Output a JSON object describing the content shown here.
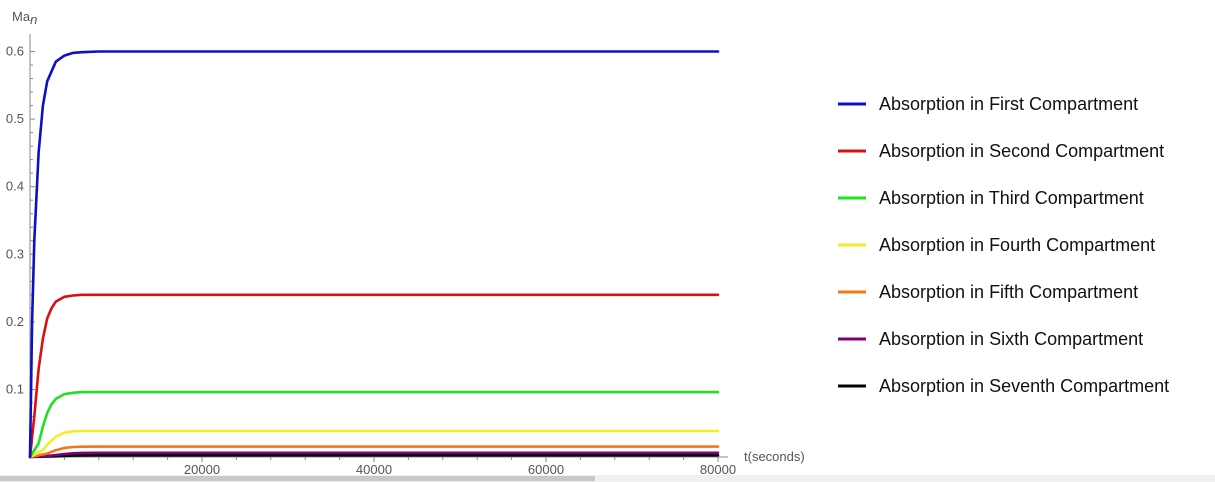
{
  "chart_data": {
    "type": "line",
    "xlabel": "t(seconds)",
    "ylabel": "Ma",
    "ylabel_sub": "n",
    "xlim": [
      0,
      80000
    ],
    "ylim": [
      0,
      0.62
    ],
    "x_ticks": [
      {
        "value": 20000,
        "label": "20000"
      },
      {
        "value": 40000,
        "label": "40000"
      },
      {
        "value": 60000,
        "label": "60000"
      },
      {
        "value": 80000,
        "label": "80000"
      }
    ],
    "y_ticks": [
      {
        "value": 0.1,
        "label": "0.1"
      },
      {
        "value": 0.2,
        "label": "0.2"
      },
      {
        "value": 0.3,
        "label": "0.3"
      },
      {
        "value": 0.4,
        "label": "0.4"
      },
      {
        "value": 0.5,
        "label": "0.5"
      },
      {
        "value": 0.6,
        "label": "0.6"
      }
    ],
    "grid": false,
    "legend": "right",
    "series": [
      {
        "name": "Absorption in First Compartment",
        "color": "#1010c0",
        "x": [
          0,
          250,
          500,
          1000,
          1500,
          2000,
          3000,
          4000,
          5000,
          6000,
          8000,
          20000,
          40000,
          60000,
          80000
        ],
        "values": [
          0,
          0.2,
          0.32,
          0.45,
          0.52,
          0.556,
          0.585,
          0.594,
          0.598,
          0.599,
          0.6,
          0.6,
          0.6,
          0.6,
          0.6
        ]
      },
      {
        "name": "Absorption in Second Compartment",
        "color": "#d81010",
        "x": [
          0,
          500,
          1000,
          1500,
          2000,
          2500,
          3000,
          4000,
          5000,
          6000,
          8000,
          20000,
          40000,
          60000,
          80000
        ],
        "values": [
          0,
          0.06,
          0.13,
          0.175,
          0.205,
          0.22,
          0.23,
          0.237,
          0.239,
          0.24,
          0.24,
          0.24,
          0.24,
          0.24,
          0.24
        ]
      },
      {
        "name": "Absorption in Third Compartment",
        "color": "#20e020",
        "x": [
          0,
          1000,
          1500,
          2000,
          2500,
          3000,
          4000,
          5000,
          6000,
          8000,
          20000,
          40000,
          60000,
          80000
        ],
        "values": [
          0,
          0.02,
          0.045,
          0.065,
          0.078,
          0.086,
          0.093,
          0.095,
          0.096,
          0.096,
          0.096,
          0.096,
          0.096,
          0.096
        ]
      },
      {
        "name": "Absorption in Fourth Compartment",
        "color": "#f0f020",
        "x": [
          0,
          1500,
          2000,
          3000,
          4000,
          5000,
          6000,
          8000,
          20000,
          40000,
          60000,
          80000
        ],
        "values": [
          0,
          0.01,
          0.018,
          0.03,
          0.036,
          0.038,
          0.0384,
          0.0384,
          0.0384,
          0.0384,
          0.0384,
          0.0384
        ]
      },
      {
        "name": "Absorption in Fifth Compartment",
        "color": "#f07818",
        "x": [
          0,
          2000,
          3000,
          4000,
          5000,
          6000,
          8000,
          20000,
          40000,
          60000,
          80000
        ],
        "values": [
          0,
          0.005,
          0.01,
          0.0135,
          0.0148,
          0.0153,
          0.0154,
          0.0154,
          0.0154,
          0.0154,
          0.0154
        ]
      },
      {
        "name": "Absorption in Sixth Compartment",
        "color": "#800080",
        "x": [
          0,
          2500,
          4000,
          5000,
          6000,
          8000,
          20000,
          40000,
          60000,
          80000
        ],
        "values": [
          0,
          0.002,
          0.0045,
          0.0055,
          0.006,
          0.0062,
          0.0062,
          0.0062,
          0.0062,
          0.0062
        ]
      },
      {
        "name": "Absorption in Seventh Compartment",
        "color": "#000000",
        "x": [
          0,
          3000,
          4000,
          5000,
          6000,
          8000,
          20000,
          40000,
          60000,
          80000
        ],
        "values": [
          0,
          0.001,
          0.0017,
          0.0021,
          0.0024,
          0.0025,
          0.0025,
          0.0025,
          0.0025,
          0.0025
        ]
      }
    ]
  }
}
